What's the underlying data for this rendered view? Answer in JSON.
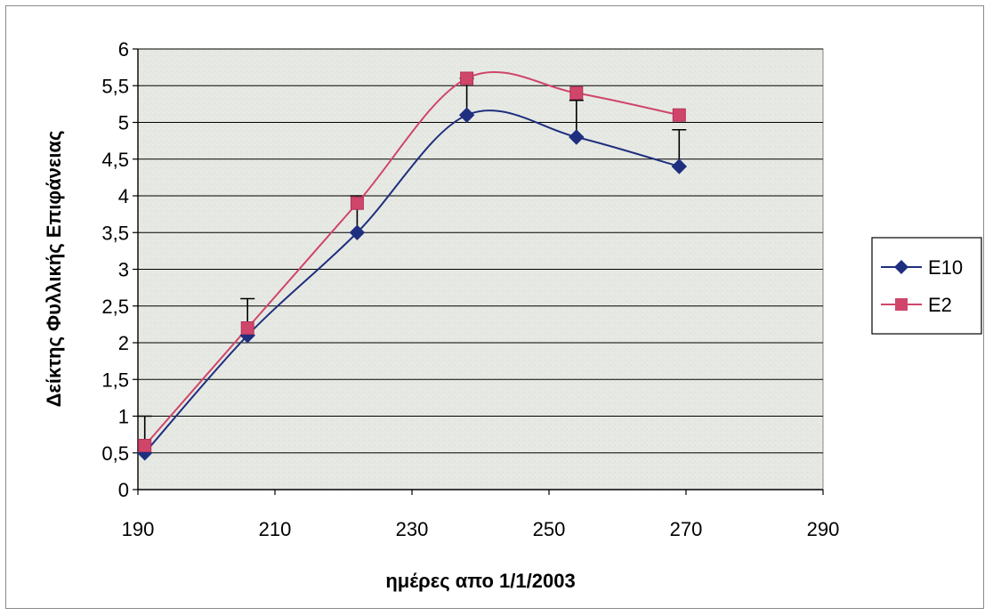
{
  "chart_data": {
    "type": "line",
    "xlabel": "ημέρες απο 1/1/2003",
    "ylabel": "Δείκτης Φυλλικής Επιφάνειας",
    "xlim": [
      190,
      290
    ],
    "ylim": [
      0,
      6
    ],
    "x_ticks": [
      190,
      210,
      230,
      250,
      270,
      290
    ],
    "y_ticks": [
      "0",
      "0,5",
      "1",
      "1,5",
      "2",
      "2,5",
      "3",
      "3,5",
      "4",
      "4,5",
      "5",
      "5,5",
      "6"
    ],
    "grid": "horizontal",
    "legend_position": "right",
    "series": [
      {
        "name": "E10",
        "color": "#1f2f7f",
        "marker": "diamond",
        "x": [
          191,
          206,
          222,
          238,
          254,
          269
        ],
        "y": [
          0.5,
          2.1,
          3.5,
          5.1,
          4.8,
          4.4
        ]
      },
      {
        "name": "E2",
        "color": "#d0456a",
        "marker": "square",
        "x": [
          191,
          206,
          222,
          238,
          254,
          269
        ],
        "y": [
          0.6,
          2.2,
          3.9,
          5.6,
          5.4,
          5.1
        ],
        "error_plus": [
          0.4,
          0.4,
          0.1,
          0,
          0,
          0
        ]
      }
    ],
    "error_bars": {
      "x": [
        191,
        206,
        222,
        238,
        254,
        269
      ],
      "low": [
        0.5,
        2.1,
        3.5,
        5.1,
        4.8,
        4.4
      ],
      "high": [
        1.0,
        2.6,
        4.0,
        5.6,
        5.3,
        4.9
      ]
    }
  }
}
